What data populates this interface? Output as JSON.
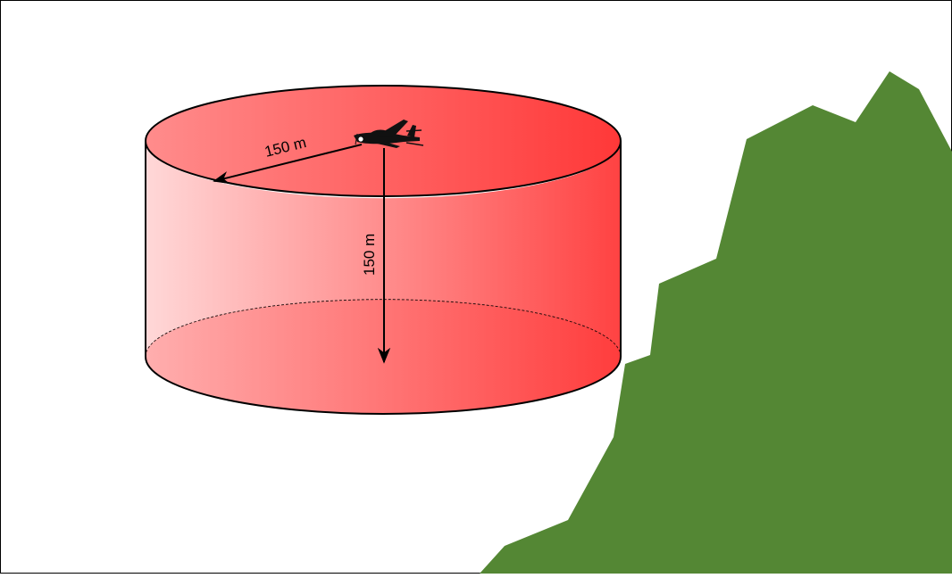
{
  "diagram": {
    "horizontal_distance": "150 m",
    "vertical_distance": "150 m"
  },
  "colors": {
    "cylinder_light": "#ffd6d6",
    "cylinder_dark": "#ff3838",
    "mountain_snow": "#dedede",
    "mountain_ochre": "#c08612",
    "mountain_green": "#548734",
    "outline": "#000000",
    "aircraft": "#111111"
  }
}
